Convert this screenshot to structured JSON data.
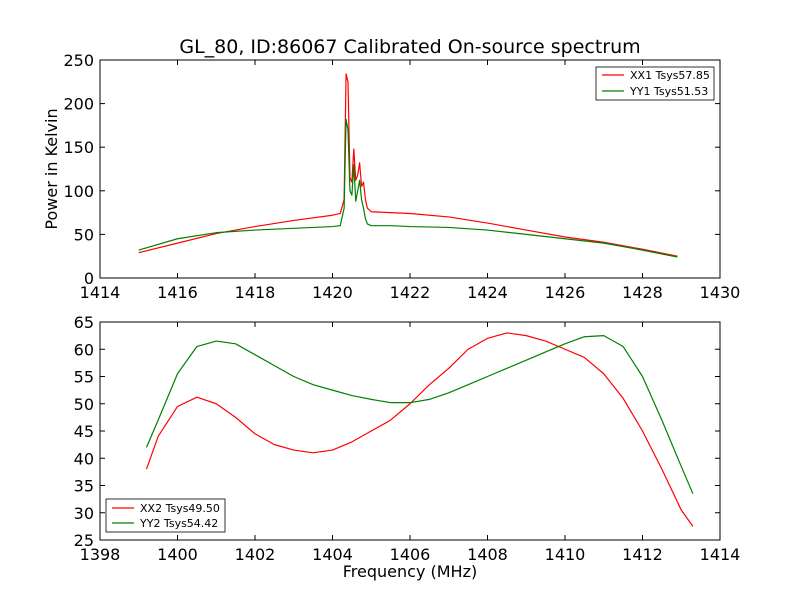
{
  "title": "GL_80, ID:86067 Calibrated On-source spectrum",
  "chart_data": [
    {
      "type": "line",
      "ylabel": "Power in Kelvin",
      "xlabel": "",
      "xlim": [
        1414,
        1430
      ],
      "ylim": [
        0,
        250
      ],
      "xticks": [
        1414,
        1416,
        1418,
        1420,
        1422,
        1424,
        1426,
        1428,
        1430
      ],
      "yticks": [
        0,
        50,
        100,
        150,
        200,
        250
      ],
      "grid": false,
      "legend_position": "top-right",
      "series": [
        {
          "name": "XX1 Tsys57.85",
          "color": "#ff0000",
          "x": [
            1415.0,
            1416.0,
            1417.0,
            1418.0,
            1419.0,
            1420.0,
            1420.2,
            1420.3,
            1420.35,
            1420.4,
            1420.45,
            1420.5,
            1420.55,
            1420.6,
            1420.65,
            1420.7,
            1420.75,
            1420.8,
            1420.85,
            1420.9,
            1421.0,
            1421.5,
            1422.0,
            1423.0,
            1424.0,
            1425.0,
            1426.0,
            1427.0,
            1428.0,
            1428.9
          ],
          "y": [
            29,
            40,
            51,
            59,
            66,
            72,
            74,
            90,
            234,
            225,
            115,
            110,
            148,
            112,
            118,
            132,
            105,
            110,
            90,
            80,
            76,
            75,
            74,
            70,
            63,
            55,
            47,
            41,
            33,
            25
          ]
        },
        {
          "name": "YY1 Tsys51.53",
          "color": "#008000",
          "x": [
            1415.0,
            1416.0,
            1417.0,
            1418.0,
            1419.0,
            1420.0,
            1420.2,
            1420.3,
            1420.35,
            1420.4,
            1420.45,
            1420.5,
            1420.55,
            1420.6,
            1420.65,
            1420.7,
            1420.75,
            1420.8,
            1420.85,
            1420.9,
            1421.0,
            1421.5,
            1422.0,
            1423.0,
            1424.0,
            1425.0,
            1426.0,
            1427.0,
            1428.0,
            1428.9
          ],
          "y": [
            32,
            45,
            52,
            55,
            57,
            59,
            60,
            80,
            182,
            170,
            100,
            95,
            130,
            88,
            100,
            112,
            90,
            80,
            68,
            62,
            60,
            60,
            59,
            58,
            55,
            50,
            45,
            40,
            32,
            24
          ]
        }
      ]
    },
    {
      "type": "line",
      "ylabel": "",
      "xlabel": "Frequency (MHz)",
      "xlim": [
        1398,
        1414
      ],
      "ylim": [
        25,
        65
      ],
      "xticks": [
        1398,
        1400,
        1402,
        1404,
        1406,
        1408,
        1410,
        1412,
        1414
      ],
      "yticks": [
        25,
        30,
        35,
        40,
        45,
        50,
        55,
        60,
        65
      ],
      "grid": false,
      "legend_position": "bottom-left",
      "series": [
        {
          "name": "XX2 Tsys49.50",
          "color": "#ff0000",
          "x": [
            1399.2,
            1399.5,
            1400.0,
            1400.5,
            1401.0,
            1401.5,
            1402.0,
            1402.5,
            1403.0,
            1403.5,
            1404.0,
            1404.5,
            1405.0,
            1405.5,
            1406.0,
            1406.5,
            1407.0,
            1407.5,
            1408.0,
            1408.5,
            1409.0,
            1409.5,
            1410.0,
            1410.5,
            1411.0,
            1411.5,
            1412.0,
            1412.5,
            1413.0,
            1413.3
          ],
          "y": [
            38,
            44,
            49.5,
            51.2,
            50,
            47.5,
            44.5,
            42.5,
            41.5,
            41,
            41.5,
            43,
            45,
            47,
            50,
            53.5,
            56.5,
            60,
            62,
            63,
            62.5,
            61.5,
            60,
            58.5,
            55.5,
            51,
            45,
            38,
            30.5,
            27.5
          ]
        },
        {
          "name": "YY2 Tsys54.42",
          "color": "#008000",
          "x": [
            1399.2,
            1399.5,
            1400.0,
            1400.5,
            1401.0,
            1401.5,
            1402.0,
            1402.5,
            1403.0,
            1403.5,
            1404.0,
            1404.5,
            1405.0,
            1405.5,
            1406.0,
            1406.5,
            1407.0,
            1407.5,
            1408.0,
            1408.5,
            1409.0,
            1409.5,
            1410.0,
            1410.5,
            1411.0,
            1411.5,
            1412.0,
            1412.5,
            1413.0,
            1413.3
          ],
          "y": [
            42,
            47,
            55.5,
            60.5,
            61.5,
            61,
            59,
            57,
            55,
            53.5,
            52.5,
            51.5,
            50.8,
            50.2,
            50.2,
            50.8,
            52,
            53.5,
            55,
            56.5,
            58,
            59.5,
            61,
            62.3,
            62.5,
            60.5,
            55,
            47,
            38.5,
            33.5
          ]
        }
      ]
    }
  ]
}
